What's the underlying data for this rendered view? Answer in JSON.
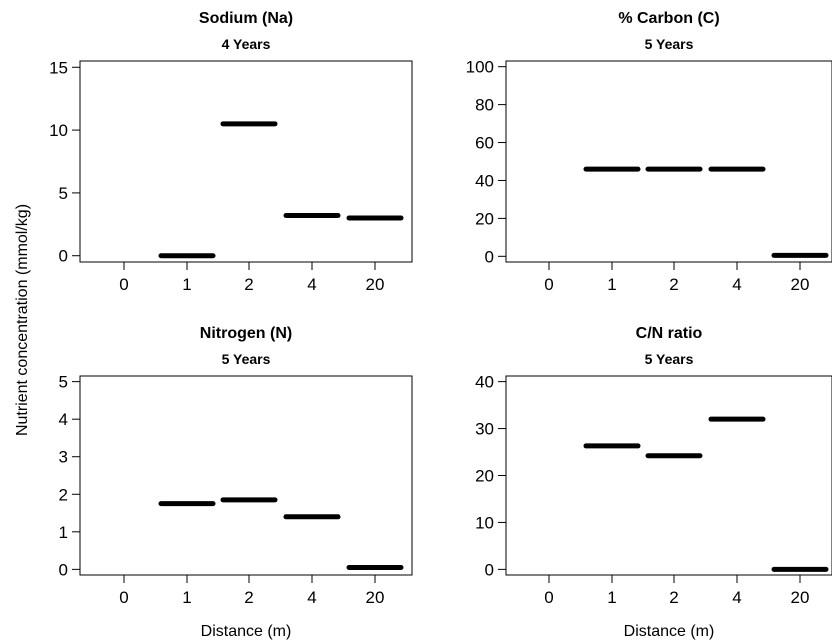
{
  "figure": {
    "ylabel": "Nutrient concentration (mmol/kg)"
  },
  "chart_data": [
    {
      "type": "bar",
      "title": "Sodium (Na)",
      "subtitle": "4 Years",
      "xlabel": "",
      "categories": [
        "0",
        "1",
        "2",
        "4",
        "20"
      ],
      "values": [
        null,
        0,
        10.5,
        3.2,
        3.0
      ],
      "ylim": [
        -0.5,
        15.5
      ],
      "yticks": [
        0,
        5,
        10,
        15
      ]
    },
    {
      "type": "bar",
      "title": "% Carbon (C)",
      "subtitle": "5 Years",
      "xlabel": "",
      "categories": [
        "0",
        "1",
        "2",
        "4",
        "20"
      ],
      "values": [
        null,
        46,
        46,
        46,
        0.5
      ],
      "ylim": [
        -3,
        103
      ],
      "yticks": [
        0,
        20,
        40,
        60,
        80,
        100
      ]
    },
    {
      "type": "bar",
      "title": "Nitrogen (N)",
      "subtitle": "5 Years",
      "xlabel": "Distance (m)",
      "categories": [
        "0",
        "1",
        "2",
        "4",
        "20"
      ],
      "values": [
        null,
        1.75,
        1.85,
        1.4,
        0.05
      ],
      "ylim": [
        -0.15,
        5.15
      ],
      "yticks": [
        0,
        1,
        2,
        3,
        4,
        5
      ]
    },
    {
      "type": "bar",
      "title": "C/N ratio",
      "subtitle": "5 Years",
      "xlabel": "Distance (m)",
      "categories": [
        "0",
        "1",
        "2",
        "4",
        "20"
      ],
      "values": [
        null,
        26.3,
        24.2,
        32,
        0
      ],
      "ylim": [
        -1.2,
        41.2
      ],
      "yticks": [
        0,
        10,
        20,
        30,
        40
      ]
    }
  ]
}
